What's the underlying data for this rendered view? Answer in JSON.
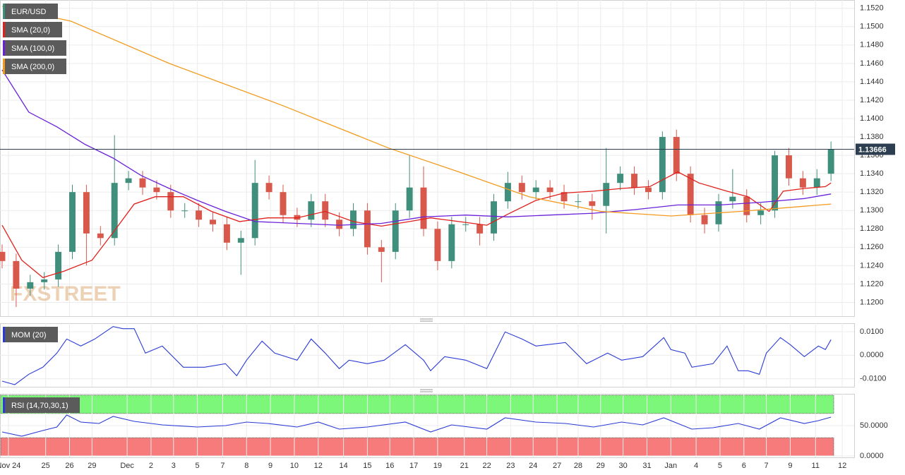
{
  "chart_data": [
    {
      "type": "candlestick",
      "title": "EUR/USD",
      "watermark": "FXSTREET",
      "up_color": "#3f8f7c",
      "down_color": "#d8584b",
      "title_color": "#3f8f7c",
      "x": [
        0,
        1,
        2,
        3,
        4,
        5,
        6,
        7,
        8,
        9,
        10,
        11,
        12,
        13,
        14,
        15,
        16,
        17,
        18,
        19,
        20,
        21,
        22,
        23,
        24,
        25,
        26,
        27,
        28,
        29,
        30,
        31,
        32,
        33,
        34,
        35,
        36,
        37,
        38,
        39,
        40,
        41,
        42,
        43,
        44,
        45,
        46,
        47,
        48,
        49,
        50,
        51,
        52,
        53,
        54,
        55,
        56,
        57,
        58,
        59
      ],
      "open": [
        1.1255,
        1.1245,
        1.1215,
        1.1222,
        1.1225,
        1.1255,
        1.132,
        1.1275,
        1.127,
        1.133,
        1.1335,
        1.1325,
        1.132,
        1.13,
        1.13,
        1.129,
        1.1285,
        1.1265,
        1.127,
        1.133,
        1.132,
        1.1295,
        1.129,
        1.131,
        1.129,
        1.128,
        1.13,
        1.126,
        1.1255,
        1.13,
        1.1325,
        1.128,
        1.1245,
        1.1285,
        1.1285,
        1.1275,
        1.131,
        1.133,
        1.132,
        1.1325,
        1.132,
        1.131,
        1.131,
        1.1305,
        1.133,
        1.134,
        1.1325,
        1.132,
        1.138,
        1.134,
        1.1295,
        1.1285,
        1.131,
        1.1315,
        1.1295,
        1.13,
        1.136,
        1.1335,
        1.1325,
        1.134
      ],
      "high": [
        1.1263,
        1.1253,
        1.123,
        1.1233,
        1.1263,
        1.1328,
        1.1328,
        1.1283,
        1.1382,
        1.1343,
        1.1343,
        1.1333,
        1.1328,
        1.1308,
        1.1308,
        1.1298,
        1.1293,
        1.1278,
        1.1355,
        1.1338,
        1.1328,
        1.1303,
        1.1318,
        1.1318,
        1.1298,
        1.1308,
        1.1308,
        1.1268,
        1.1308,
        1.136,
        1.1348,
        1.1288,
        1.1293,
        1.1293,
        1.1293,
        1.1318,
        1.1342,
        1.1338,
        1.1333,
        1.1333,
        1.1328,
        1.1318,
        1.1318,
        1.1368,
        1.1348,
        1.1348,
        1.1333,
        1.1386,
        1.1388,
        1.1348,
        1.1303,
        1.1318,
        1.1345,
        1.1323,
        1.1308,
        1.1365,
        1.1368,
        1.1343,
        1.1345,
        1.1375
      ],
      "low": [
        1.1237,
        1.1195,
        1.1207,
        1.1214,
        1.1217,
        1.1247,
        1.124,
        1.1262,
        1.1262,
        1.1322,
        1.1317,
        1.1312,
        1.1292,
        1.1292,
        1.1282,
        1.1277,
        1.1257,
        1.123,
        1.1262,
        1.1312,
        1.1287,
        1.1282,
        1.1282,
        1.1282,
        1.1272,
        1.1272,
        1.1252,
        1.1222,
        1.1247,
        1.1292,
        1.1272,
        1.1235,
        1.1237,
        1.1277,
        1.1262,
        1.1267,
        1.1302,
        1.1312,
        1.1312,
        1.1312,
        1.1302,
        1.1302,
        1.129,
        1.1275,
        1.1322,
        1.1317,
        1.1312,
        1.1312,
        1.1332,
        1.1287,
        1.1275,
        1.1277,
        1.1302,
        1.1287,
        1.1285,
        1.1292,
        1.1327,
        1.1317,
        1.1317,
        1.1332
      ],
      "close": [
        1.1245,
        1.1215,
        1.1222,
        1.1225,
        1.1255,
        1.132,
        1.1275,
        1.127,
        1.133,
        1.1335,
        1.1325,
        1.132,
        1.13,
        1.13,
        1.129,
        1.1285,
        1.1265,
        1.127,
        1.133,
        1.132,
        1.1295,
        1.129,
        1.131,
        1.129,
        1.128,
        1.13,
        1.126,
        1.1255,
        1.13,
        1.1325,
        1.128,
        1.1245,
        1.1285,
        1.1285,
        1.1275,
        1.131,
        1.133,
        1.132,
        1.1325,
        1.132,
        1.131,
        1.131,
        1.1305,
        1.133,
        1.134,
        1.1325,
        1.132,
        1.138,
        1.134,
        1.1295,
        1.1285,
        1.131,
        1.1315,
        1.1295,
        1.13,
        1.136,
        1.1335,
        1.1325,
        1.1335,
        1.13666
      ],
      "overlays": [
        {
          "name": "SMA (20,0)",
          "color": "#e0201c",
          "x": [
            0,
            1.4,
            2.9,
            4.4,
            6.4,
            7.9,
            9.4,
            10.9,
            12.9,
            14.9,
            16.9,
            18.9,
            21.0,
            23.0,
            25.0,
            27.0,
            29.0,
            30.5,
            32.5,
            34.5,
            36.0,
            38.0,
            40.0,
            42.1,
            44.1,
            46.1,
            48.1,
            49.6,
            51.6,
            53.1,
            54.6,
            55.6,
            57.1,
            58.6,
            59
          ],
          "values": [
            1.1284,
            1.1246,
            1.1227,
            1.1234,
            1.1246,
            1.1276,
            1.1307,
            1.1315,
            1.1315,
            1.1299,
            1.1288,
            1.1292,
            1.1292,
            1.1299,
            1.1288,
            1.1283,
            1.1288,
            1.1292,
            1.1288,
            1.1284,
            1.1296,
            1.1311,
            1.1319,
            1.1321,
            1.1324,
            1.1326,
            1.1342,
            1.133,
            1.1321,
            1.1315,
            1.1299,
            1.1321,
            1.1324,
            1.1326,
            1.133
          ]
        },
        {
          "name": "SMA (100,0)",
          "color": "#6a22d8",
          "x": [
            0,
            1.9,
            3.9,
            5.9,
            7.9,
            9.9,
            11.9,
            13.9,
            15.9,
            18.0,
            21.0,
            24.0,
            27.0,
            30.0,
            33.0,
            36.0,
            39.0,
            42.1,
            45.1,
            48.1,
            51.1,
            54.1,
            57.1,
            59
          ],
          "values": [
            1.1453,
            1.1407,
            1.1391,
            1.1372,
            1.1357,
            1.1338,
            1.1324,
            1.1311,
            1.1299,
            1.1288,
            1.1286,
            1.1284,
            1.1286,
            1.1293,
            1.1295,
            1.1293,
            1.1295,
            1.1297,
            1.1301,
            1.1306,
            1.1306,
            1.1309,
            1.1313,
            1.1318
          ]
        },
        {
          "name": "SMA (200,0)",
          "color": "#f39a1e",
          "x": [
            0,
            4.9,
            11.9,
            20.0,
            27.5,
            32.5,
            37.5,
            42.6,
            47.6,
            52.6,
            59
          ],
          "values": [
            1.1522,
            1.1506,
            1.146,
            1.1414,
            1.1368,
            1.1342,
            1.1315,
            1.1299,
            1.1294,
            1.1299,
            1.1307
          ]
        }
      ],
      "last_price": 1.13666,
      "xlim": [
        -0.15,
        60.65
      ],
      "ylim": [
        1.1185,
        1.1529
      ],
      "grid": true,
      "yticks": [
        {
          "value": 1.12,
          "label": "1.1200"
        },
        {
          "value": 1.122,
          "label": "1.1220"
        },
        {
          "value": 1.124,
          "label": "1.1240"
        },
        {
          "value": 1.126,
          "label": "1.1260"
        },
        {
          "value": 1.128,
          "label": "1.1280"
        },
        {
          "value": 1.13,
          "label": "1.1300"
        },
        {
          "value": 1.132,
          "label": "1.1320"
        },
        {
          "value": 1.134,
          "label": "1.1340"
        },
        {
          "value": 1.136,
          "label": "1.1360"
        },
        {
          "value": 1.138,
          "label": "1.1380"
        },
        {
          "value": 1.14,
          "label": "1.1400"
        },
        {
          "value": 1.142,
          "label": "1.1420"
        },
        {
          "value": 1.144,
          "label": "1.1440"
        },
        {
          "value": 1.146,
          "label": "1.1460"
        },
        {
          "value": 1.148,
          "label": "1.1480"
        },
        {
          "value": 1.15,
          "label": "1.1500"
        },
        {
          "value": 1.152,
          "label": "1.1520"
        }
      ],
      "xticks": [
        {
          "value": 0.45,
          "label": "Nov 24"
        },
        {
          "value": 3.1,
          "label": "25"
        },
        {
          "value": 4.8,
          "label": "26"
        },
        {
          "value": 6.4,
          "label": "29"
        },
        {
          "value": 8.9,
          "label": "Dec"
        },
        {
          "value": 10.6,
          "label": "2"
        },
        {
          "value": 12.2,
          "label": "3"
        },
        {
          "value": 13.9,
          "label": "5"
        },
        {
          "value": 15.7,
          "label": "7"
        },
        {
          "value": 17.4,
          "label": "8"
        },
        {
          "value": 19.1,
          "label": "9"
        },
        {
          "value": 20.8,
          "label": "10"
        },
        {
          "value": 22.5,
          "label": "12"
        },
        {
          "value": 24.3,
          "label": "14"
        },
        {
          "value": 26.0,
          "label": "15"
        },
        {
          "value": 27.6,
          "label": "16"
        },
        {
          "value": 29.3,
          "label": "17"
        },
        {
          "value": 31.0,
          "label": "19"
        },
        {
          "value": 32.9,
          "label": "21"
        },
        {
          "value": 34.5,
          "label": "22"
        },
        {
          "value": 36.2,
          "label": "23"
        },
        {
          "value": 37.8,
          "label": "24"
        },
        {
          "value": 39.5,
          "label": "27"
        },
        {
          "value": 41.0,
          "label": "28"
        },
        {
          "value": 42.6,
          "label": "29"
        },
        {
          "value": 44.2,
          "label": "30"
        },
        {
          "value": 45.9,
          "label": "31"
        },
        {
          "value": 47.6,
          "label": "Jan"
        },
        {
          "value": 49.4,
          "label": "4"
        },
        {
          "value": 51.1,
          "label": "5"
        },
        {
          "value": 52.8,
          "label": "6"
        },
        {
          "value": 54.4,
          "label": "7"
        },
        {
          "value": 56.1,
          "label": "9"
        },
        {
          "value": 57.9,
          "label": "11"
        },
        {
          "value": 59.8,
          "label": "12"
        }
      ]
    },
    {
      "type": "line",
      "title": "MOM (20)",
      "title_color": "#2a3bd6",
      "series": [
        {
          "color": "#2a3bd6",
          "x": [
            0,
            0.9,
            1.9,
            2.9,
            3.9,
            4.6,
            5.6,
            6.6,
            7.9,
            8.6,
            9.4,
            10.2,
            11.4,
            12.9,
            14.4,
            15.9,
            16.7,
            17.4,
            18.5,
            19.4,
            21.0,
            22.0,
            23.0,
            24.0,
            24.7,
            26.0,
            27.2,
            28.7,
            30.0,
            30.5,
            31.5,
            33.0,
            34.5,
            35.8,
            37.0,
            38.0,
            40.1,
            41.6,
            43.1,
            44.1,
            45.6,
            47.1,
            47.6,
            48.6,
            49.1,
            50.6,
            51.6,
            52.4,
            53.1,
            53.9,
            54.4,
            55.4,
            56.1,
            57.1,
            58.1,
            58.6,
            59
          ],
          "values": [
            -0.011,
            -0.0125,
            -0.0081,
            -0.0051,
            0.0009,
            0.0069,
            0.0039,
            0.0069,
            0.0122,
            0.0113,
            0.0113,
            0.0009,
            0.0039,
            -0.0051,
            -0.0051,
            -0.0036,
            -0.0087,
            -0.0021,
            0.006,
            0.0009,
            -0.0021,
            0.0069,
            0.0009,
            -0.0057,
            -0.0021,
            -0.0036,
            -0.0021,
            0.0045,
            -0.0021,
            -0.0066,
            -0.0006,
            -0.0021,
            -0.0057,
            0.0099,
            0.0069,
            0.0039,
            0.0054,
            -0.0036,
            0.0009,
            -0.0021,
            -0.0006,
            0.0075,
            0.0024,
            0.0009,
            -0.0051,
            -0.0036,
            0.0039,
            -0.0066,
            -0.0066,
            -0.0081,
            0.0009,
            0.0075,
            0.0045,
            -0.0006,
            0.0039,
            0.0024,
            0.0066
          ]
        }
      ],
      "ylim": [
        -0.0134,
        0.0136
      ],
      "yticks": [
        {
          "value": -0.01,
          "label": "-0.0100"
        },
        {
          "value": 0,
          "label": "0.0000"
        },
        {
          "value": 0.01,
          "label": "0.0100"
        }
      ]
    },
    {
      "type": "line",
      "title": "RSI (14,70,30,1)",
      "title_color": "#2a3bd6",
      "bands": [
        {
          "from": 70,
          "to": 100,
          "color": "#7df77a"
        },
        {
          "from": 0,
          "to": 30,
          "color": "#f77b7b"
        }
      ],
      "series": [
        {
          "color": "#2a3bd6",
          "x": [
            0,
            1.4,
            2.9,
            3.9,
            4.6,
            5.6,
            6.9,
            7.9,
            9.4,
            11.4,
            13.9,
            15.9,
            17.4,
            18.9,
            21.0,
            22.5,
            24.0,
            26.0,
            28.7,
            30.5,
            32.0,
            34.5,
            35.8,
            38.0,
            40.1,
            42.1,
            44.1,
            45.6,
            47.1,
            49.1,
            50.6,
            52.4,
            53.9,
            55.4,
            57.1,
            58.1,
            59
          ],
          "values": [
            39.5,
            32.6,
            41.9,
            47.7,
            67.4,
            55.8,
            53.5,
            65.1,
            57.0,
            51.2,
            47.7,
            50,
            55.8,
            53.5,
            47.7,
            55.8,
            44.2,
            47.7,
            55.8,
            39.5,
            51.2,
            44.2,
            62.8,
            55.8,
            53.5,
            47.7,
            55.8,
            51.2,
            62.8,
            44.2,
            46.5,
            53.5,
            44.2,
            62.8,
            53.5,
            58.1,
            64.0
          ]
        }
      ],
      "ylim": [
        -2.3,
        102.3
      ],
      "yticks": [
        {
          "value": 0,
          "label": "0.0000"
        },
        {
          "value": 50,
          "label": "50.0000"
        }
      ]
    }
  ]
}
